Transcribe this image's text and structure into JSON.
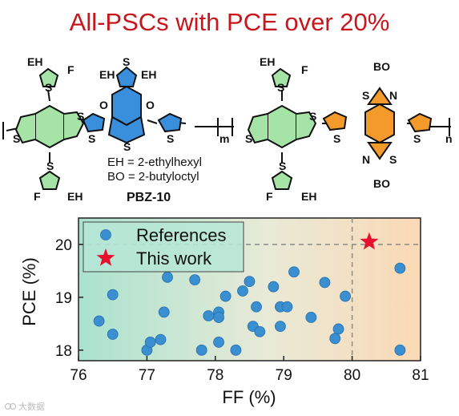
{
  "title": "All-PSCs with PCE over 20%",
  "structure": {
    "name": "PBZ-10",
    "legend_eh": "EH = 2-ethylhexyl",
    "legend_bo": "BO = 2-butyloctyl",
    "atoms": {
      "eh": "EH",
      "bo": "BO",
      "f": "F",
      "s": "S",
      "n": "N",
      "o": "O",
      "m": "m",
      "n_sub": "n"
    },
    "colors": {
      "thiophene_green": "#a6e3a6",
      "thiophene_blue": "#3a8fdc",
      "bdd_blue": "#3a8fdc",
      "thiophene_orange": "#f39a2a",
      "btz_orange": "#f39a2a"
    }
  },
  "chart_data": {
    "type": "scatter",
    "title": "",
    "xlabel": "FF (%)",
    "ylabel": "PCE (%)",
    "xlim": [
      76,
      81
    ],
    "ylim": [
      17.8,
      20.5
    ],
    "xticks": [
      "76",
      "77",
      "78",
      "79",
      "80",
      "81"
    ],
    "yticks": [
      "18",
      "19",
      "20"
    ],
    "reference_lines": {
      "x": 80,
      "y": 20
    },
    "legend_position": "top-left",
    "background_gradient": [
      "#a9e2cf",
      "#fbd9b5"
    ],
    "series": [
      {
        "name": "References",
        "marker": "circle",
        "color": "#3a8fd0",
        "points": [
          [
            76.3,
            18.55
          ],
          [
            76.5,
            18.3
          ],
          [
            76.5,
            19.05
          ],
          [
            77.0,
            18.0
          ],
          [
            77.05,
            18.15
          ],
          [
            77.2,
            18.2
          ],
          [
            77.25,
            18.72
          ],
          [
            77.3,
            19.38
          ],
          [
            77.7,
            19.33
          ],
          [
            77.8,
            18.0
          ],
          [
            77.9,
            18.65
          ],
          [
            78.05,
            18.72
          ],
          [
            78.05,
            18.62
          ],
          [
            78.05,
            18.15
          ],
          [
            78.15,
            19.02
          ],
          [
            78.3,
            18.0
          ],
          [
            78.4,
            19.12
          ],
          [
            78.5,
            19.3
          ],
          [
            78.55,
            18.45
          ],
          [
            78.6,
            18.82
          ],
          [
            78.65,
            18.35
          ],
          [
            78.85,
            19.2
          ],
          [
            78.95,
            18.82
          ],
          [
            78.95,
            18.45
          ],
          [
            79.05,
            18.82
          ],
          [
            79.15,
            19.48
          ],
          [
            79.4,
            18.62
          ],
          [
            79.6,
            19.28
          ],
          [
            79.75,
            18.22
          ],
          [
            79.8,
            18.4
          ],
          [
            79.9,
            19.02
          ],
          [
            80.7,
            19.55
          ],
          [
            80.7,
            18.0
          ]
        ]
      },
      {
        "name": "This work",
        "marker": "star",
        "color": "#e8112d",
        "points": [
          [
            80.25,
            20.05
          ]
        ]
      }
    ]
  },
  "watermark": "大数据"
}
